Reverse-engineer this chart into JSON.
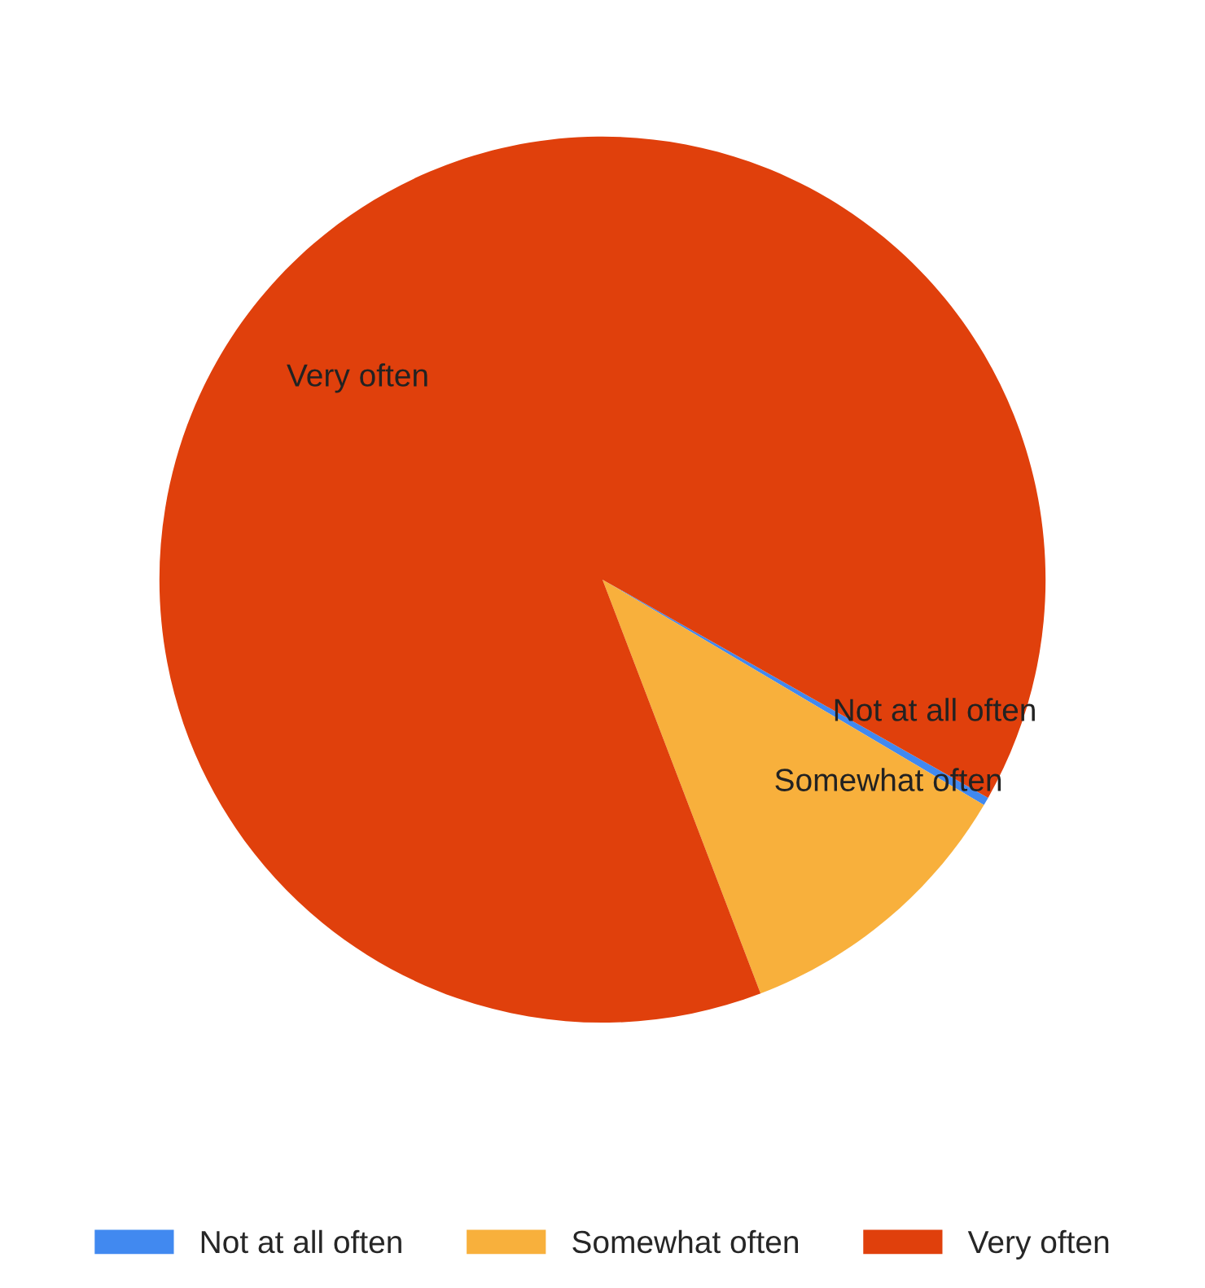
{
  "chart_data": {
    "type": "pie",
    "categories": [
      "Not at all often",
      "Somewhat often",
      "Very often"
    ],
    "values": [
      0.3,
      10.7,
      89
    ],
    "colors": [
      "#4189f0",
      "#f8b03c",
      "#e0400c"
    ],
    "legend": "bottom"
  }
}
